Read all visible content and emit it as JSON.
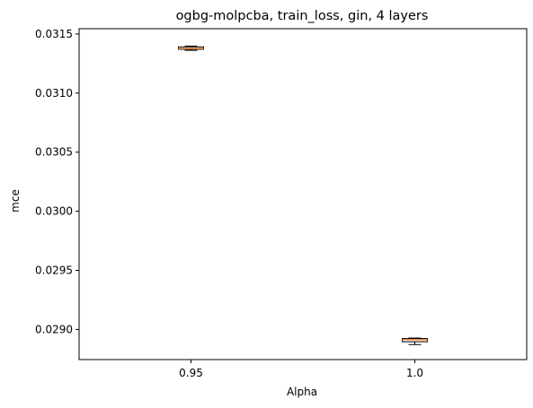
{
  "chart_data": {
    "type": "box",
    "title": "ogbg-molpcba, train_loss, gin, 4 layers",
    "xlabel": "Alpha",
    "ylabel": "mce",
    "categories": [
      "0.95",
      "1.0"
    ],
    "ylim": [
      0.028745,
      0.031545
    ],
    "yticks": [
      0.029,
      0.0295,
      0.03,
      0.0305,
      0.031,
      0.0315
    ],
    "ytick_labels": [
      "0.0290",
      "0.0295",
      "0.0300",
      "0.0305",
      "0.0310",
      "0.0315"
    ],
    "grid": false,
    "boxes": [
      {
        "category": "0.95",
        "whislo": 0.031362,
        "q1": 0.031371,
        "median": 0.031378,
        "q3": 0.031391,
        "whishi": 0.031398
      },
      {
        "category": "1.0",
        "whislo": 0.028872,
        "q1": 0.028896,
        "median": 0.028914,
        "q3": 0.028923,
        "whishi": 0.028927
      }
    ],
    "colors": {
      "box": "#000000",
      "median": "#f0883a",
      "background": "#ffffff"
    }
  }
}
